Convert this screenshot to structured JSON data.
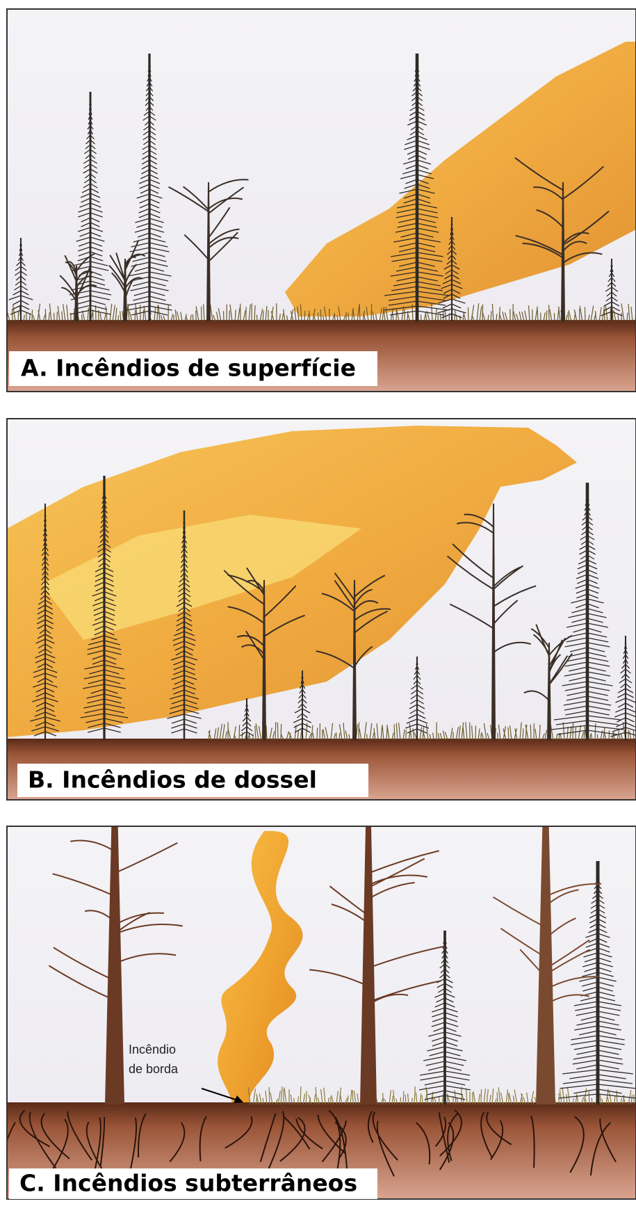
{
  "panels": [
    {
      "label": "A. Incêndios de superfície"
    },
    {
      "label": "B. Incêndios de dossel"
    },
    {
      "label": "C. Incêndios subterrâneos",
      "annotation": [
        "Incêndio",
        "de borda"
      ]
    }
  ]
}
